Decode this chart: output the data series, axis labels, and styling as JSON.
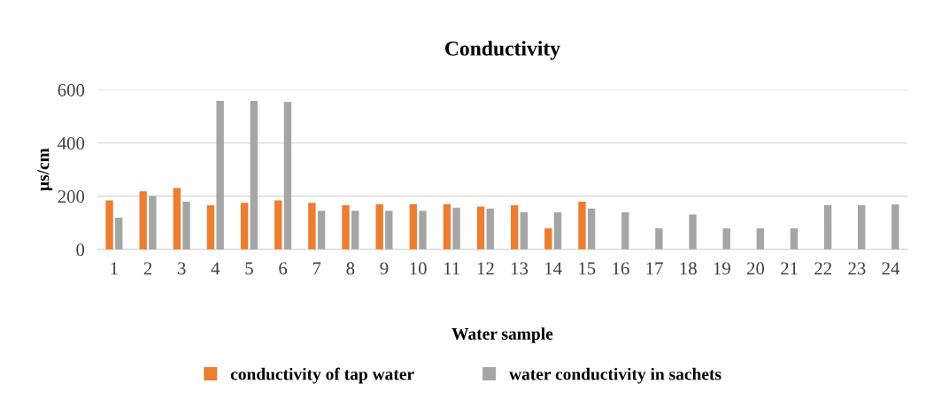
{
  "chart_data": {
    "type": "bar",
    "title": "Conductivity",
    "xlabel": "Water sample",
    "ylabel": "µs/cm",
    "categories": [
      "1",
      "2",
      "3",
      "4",
      "5",
      "6",
      "7",
      "8",
      "9",
      "10",
      "11",
      "12",
      "13",
      "14",
      "15",
      "16",
      "17",
      "18",
      "19",
      "20",
      "21",
      "22",
      "23",
      "24"
    ],
    "series": [
      {
        "name": "conductivity of tap water",
        "color": "#ed7d31",
        "values": [
          184,
          218,
          231,
          166,
          175,
          184,
          175,
          166,
          170,
          170,
          170,
          161,
          166,
          79,
          179,
          null,
          null,
          null,
          null,
          null,
          null,
          null,
          null,
          null
        ]
      },
      {
        "name": "water conductivity in sachets",
        "color": "#a5a5a5",
        "values": [
          119,
          201,
          179,
          558,
          558,
          554,
          145,
          145,
          145,
          145,
          157,
          153,
          140,
          139,
          153,
          139,
          79,
          131,
          79,
          79,
          79,
          166,
          166,
          169
        ]
      }
    ],
    "ylim": [
      0,
      600
    ],
    "yticks": [
      0,
      200,
      400,
      600
    ],
    "grid": "y",
    "legend": "bottom"
  }
}
